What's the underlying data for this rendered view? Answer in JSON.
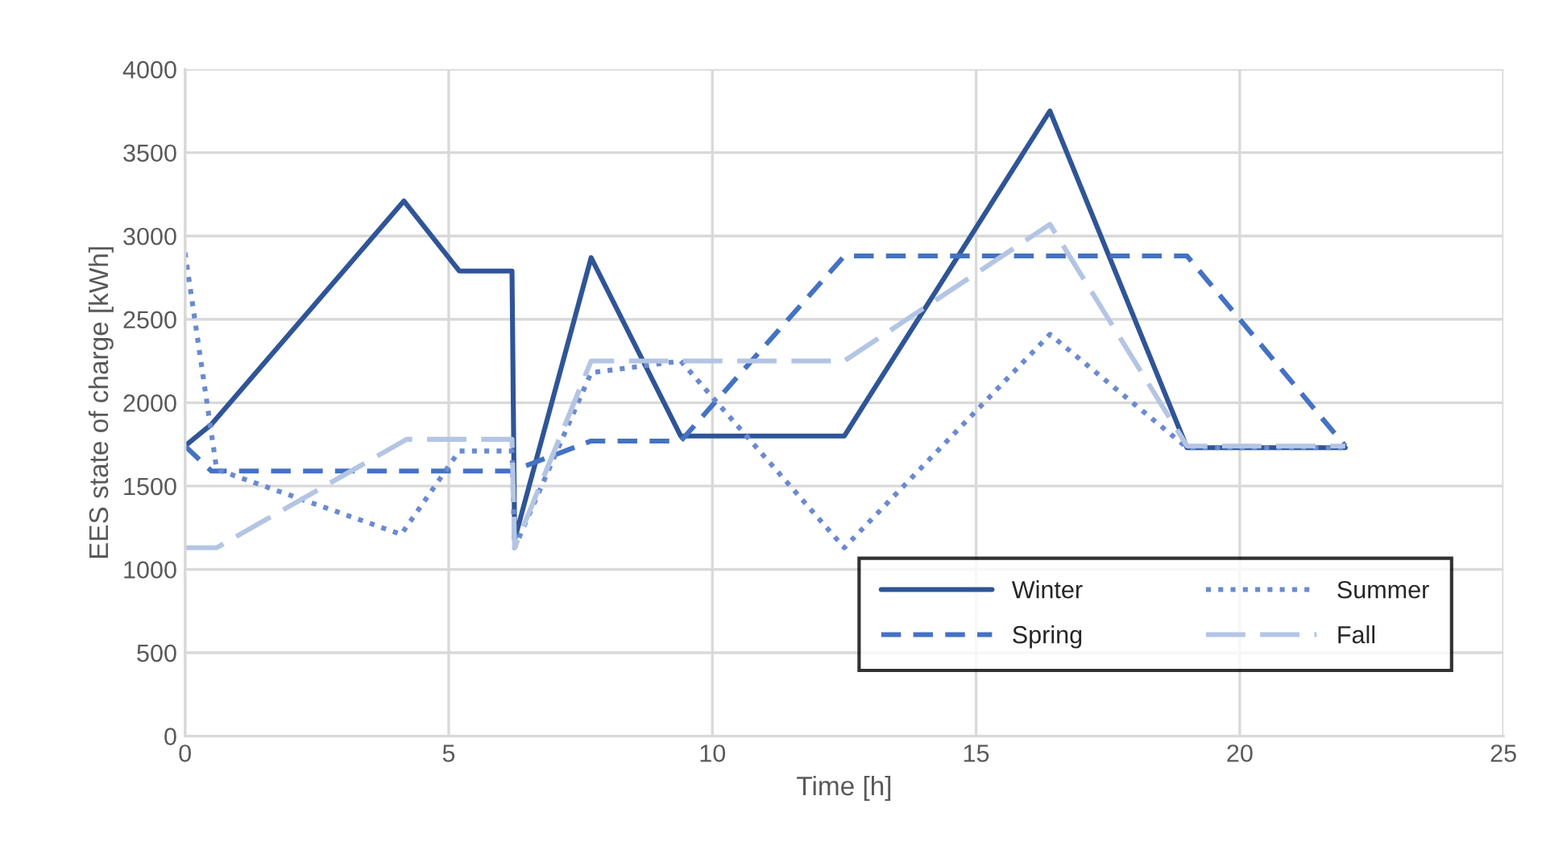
{
  "chart_data": {
    "type": "line",
    "xlabel": "Time [h]",
    "ylabel": "EES state of charge [kWh]",
    "xlim": [
      0,
      25
    ],
    "xticks": [
      0,
      5,
      10,
      15,
      20,
      25
    ],
    "ylim": [
      0,
      4000
    ],
    "yticks": [
      0,
      500,
      1000,
      1500,
      2000,
      2500,
      3000,
      3500,
      4000
    ],
    "grid": true,
    "legend": "bottom right",
    "series": [
      {
        "name": "Winter",
        "color": "#2f5597",
        "line_style": "solid",
        "x": [
          0,
          0.5,
          4.15,
          5.2,
          6.2,
          6.25,
          7.7,
          9.4,
          12.5,
          16.4,
          19,
          22
        ],
        "values": [
          1740,
          1870,
          3210,
          2790,
          2790,
          1180,
          2870,
          1800,
          1800,
          3750,
          1730,
          1730
        ]
      },
      {
        "name": "Spring",
        "color": "#4472c4",
        "line_style": "dashed",
        "x": [
          0,
          0.5,
          6.2,
          7.7,
          9.4,
          12.5,
          19,
          22
        ],
        "values": [
          1740,
          1590,
          1590,
          1770,
          1770,
          2880,
          2880,
          1740
        ]
      },
      {
        "name": "Summer",
        "color": "#6a8ad0",
        "line_style": "dotted",
        "x": [
          0,
          0.6,
          4.1,
          5.2,
          6.2,
          6.25,
          7.7,
          9.4,
          12.5,
          16.4,
          19,
          22
        ],
        "values": [
          2900,
          1600,
          1210,
          1710,
          1710,
          1130,
          2180,
          2250,
          1130,
          2410,
          1730,
          1730
        ]
      },
      {
        "name": "Fall",
        "color": "#b4c5e4",
        "line_style": "longdash",
        "x": [
          0,
          0.6,
          4.2,
          6.2,
          6.25,
          7.7,
          12.5,
          16.4,
          19,
          22
        ],
        "values": [
          1130,
          1130,
          1780,
          1780,
          1130,
          2250,
          2250,
          3070,
          1740,
          1740
        ]
      }
    ]
  }
}
